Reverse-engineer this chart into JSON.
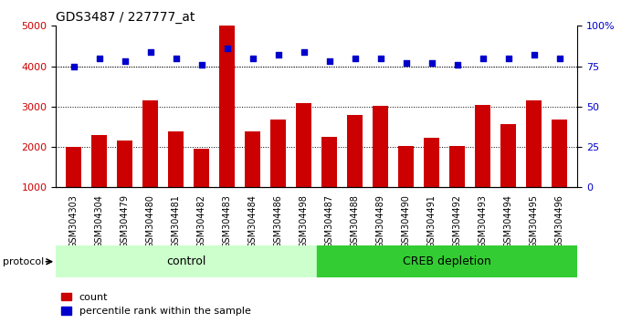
{
  "title": "GDS3487 / 227777_at",
  "samples": [
    "GSM304303",
    "GSM304304",
    "GSM304479",
    "GSM304480",
    "GSM304481",
    "GSM304482",
    "GSM304483",
    "GSM304484",
    "GSM304486",
    "GSM304498",
    "GSM304487",
    "GSM304488",
    "GSM304489",
    "GSM304490",
    "GSM304491",
    "GSM304492",
    "GSM304493",
    "GSM304494",
    "GSM304495",
    "GSM304496"
  ],
  "counts": [
    2000,
    2300,
    2150,
    3150,
    2380,
    1950,
    5000,
    2380,
    2680,
    3080,
    2250,
    2800,
    3020,
    2020,
    2230,
    2030,
    3050,
    2560,
    3150,
    2670
  ],
  "percentile_ranks": [
    75,
    80,
    78,
    84,
    80,
    76,
    86,
    80,
    82,
    84,
    78,
    80,
    80,
    77,
    77,
    76,
    80,
    80,
    82,
    80
  ],
  "control_count": 10,
  "creb_count": 10,
  "bar_color": "#cc0000",
  "dot_color": "#0000cc",
  "bg_color": "#ffffff",
  "tick_area_color": "#d0d0d0",
  "control_color": "#ccffcc",
  "creb_color": "#33cc33",
  "ylim_left": [
    1000,
    5000
  ],
  "ylim_right": [
    0,
    100
  ],
  "yticks_left": [
    1000,
    2000,
    3000,
    4000,
    5000
  ],
  "yticks_right": [
    0,
    25,
    50,
    75,
    100
  ],
  "ytick_labels_right": [
    "0",
    "25",
    "50",
    "75",
    "100%"
  ],
  "grid_values": [
    2000,
    3000,
    4000
  ],
  "xlabel": "",
  "protocol_label": "protocol",
  "legend_count_label": "count",
  "legend_pct_label": "percentile rank within the sample"
}
